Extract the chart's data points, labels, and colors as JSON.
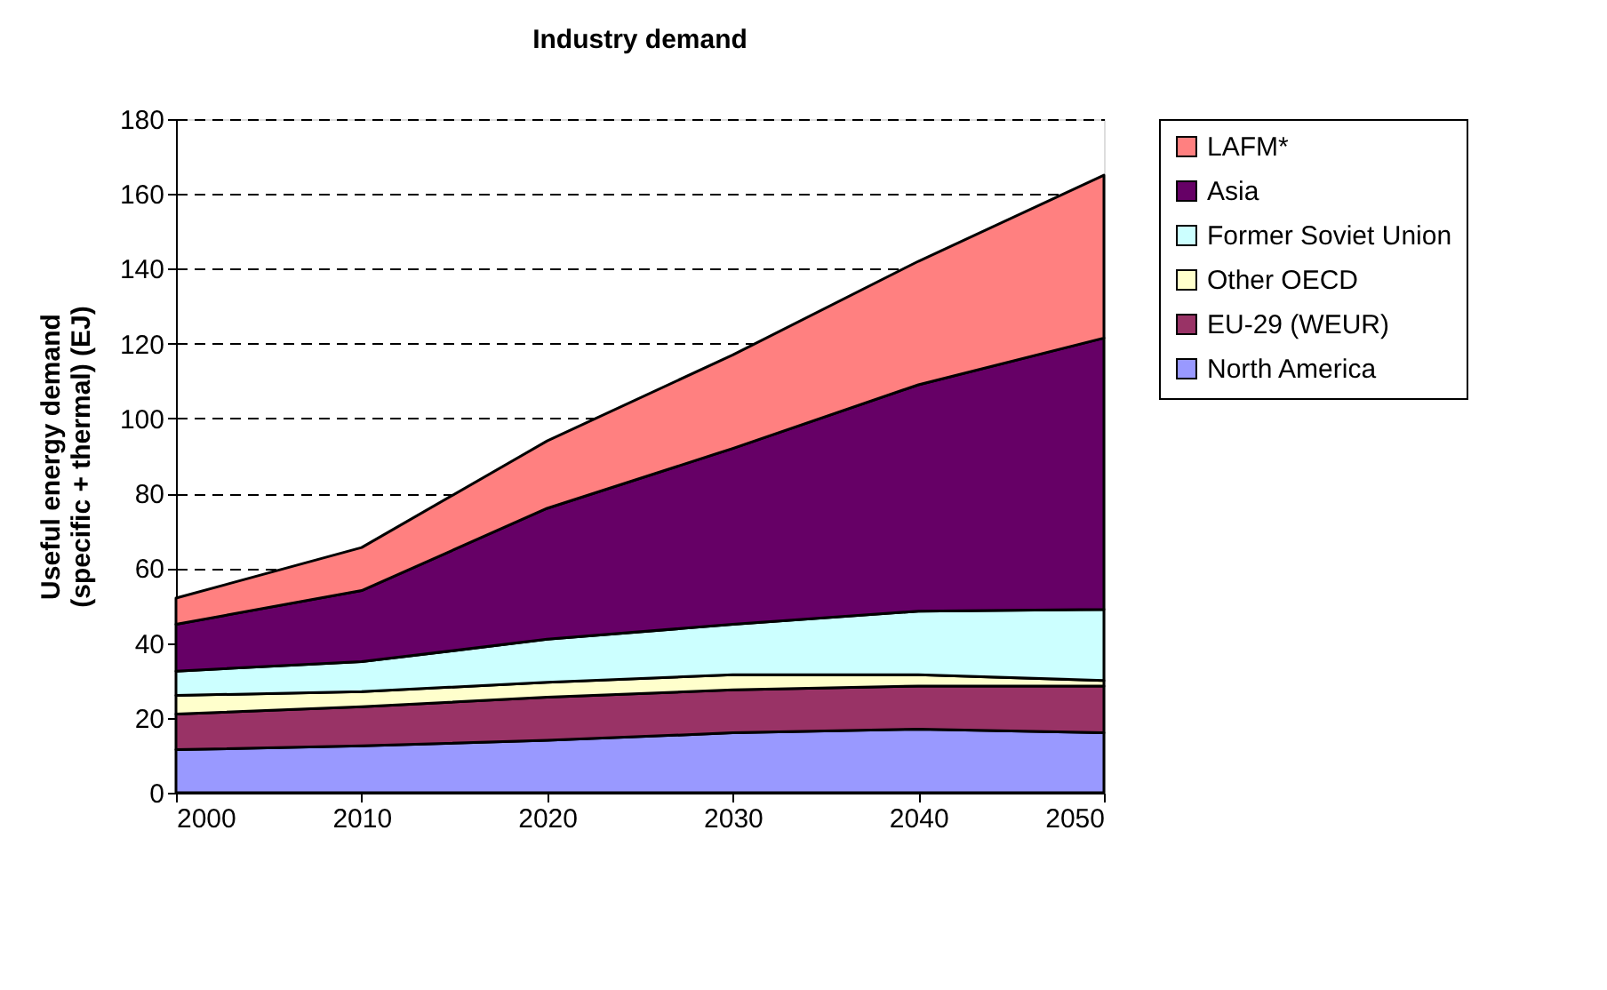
{
  "chart_data": {
    "type": "area",
    "title": "Industry demand",
    "ylabel": "Useful energy demand\n(specific + thermal) (EJ)",
    "x": [
      2000,
      2010,
      2020,
      2030,
      2040,
      2050
    ],
    "stacked": true,
    "series": [
      {
        "name": "North America",
        "color": "#9999ff",
        "values": [
          11.5,
          12.5,
          14,
          16,
          17,
          16
        ]
      },
      {
        "name": "EU-29 (WEUR)",
        "color": "#993366",
        "values": [
          9.5,
          10.5,
          11.5,
          11.5,
          11.5,
          12.5
        ]
      },
      {
        "name": "Other OECD",
        "color": "#ffffcc",
        "values": [
          5,
          4,
          4,
          4,
          3,
          1.5
        ]
      },
      {
        "name": "Former Soviet Union",
        "color": "#ccffff",
        "values": [
          6.5,
          8,
          11.5,
          13.5,
          17,
          19
        ]
      },
      {
        "name": "Asia",
        "color": "#660066",
        "values": [
          12.5,
          19,
          35,
          47,
          60.5,
          72.5
        ]
      },
      {
        "name": "LAFM*",
        "color": "#ff8080",
        "values": [
          7,
          11.5,
          18,
          25,
          33,
          43.5
        ]
      }
    ],
    "xlim": [
      2000,
      2050
    ],
    "xticks": [
      2000,
      2010,
      2020,
      2030,
      2040,
      2050
    ],
    "ylim": [
      0,
      180
    ],
    "yticks": [
      0,
      20,
      40,
      60,
      80,
      100,
      120,
      140,
      160,
      180
    ],
    "grid": "y",
    "legend": "right"
  }
}
